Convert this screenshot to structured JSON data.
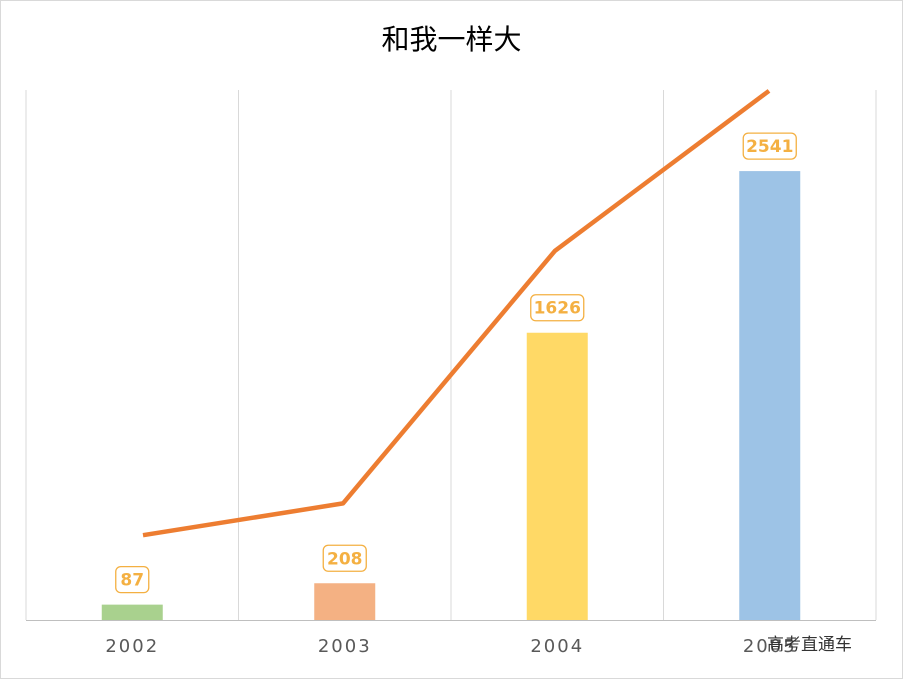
{
  "chart_data": {
    "type": "bar",
    "title": "和我一样大",
    "categories": [
      "2002",
      "2003",
      "2004",
      "2005"
    ],
    "values": [
      87,
      208,
      1626,
      2541
    ],
    "bar_colors": [
      "#a9d18e",
      "#f4b183",
      "#ffd966",
      "#9dc3e6"
    ],
    "ylim": [
      0,
      3000
    ],
    "line": {
      "values": [
        480,
        660,
        2090,
        2995
      ],
      "color": "#ed7d31"
    },
    "data_label_color": "#f4b042",
    "grid": "vertical",
    "watermark": "高考直通车"
  }
}
